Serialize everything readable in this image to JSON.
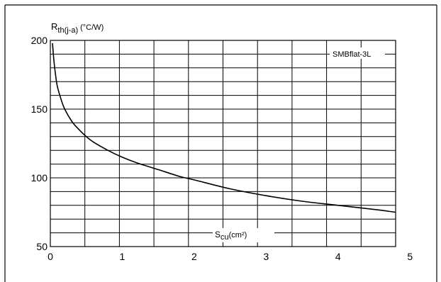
{
  "chart_data": {
    "type": "line",
    "ylabel_main": "R",
    "ylabel_sub": "th(j-a)",
    "ylabel_unit": "(°C/W)",
    "xlabel_main": "S",
    "xlabel_sub": "cu",
    "xlabel_unit": "(cm²)",
    "xlim": [
      0,
      4.8
    ],
    "ylim": [
      50,
      200
    ],
    "x_ticks": [
      0,
      1,
      2,
      3,
      4,
      5
    ],
    "x_tick_labels": [
      "0",
      "1",
      "2",
      "3",
      "4",
      "5"
    ],
    "y_ticks": [
      50,
      100,
      150,
      200
    ],
    "y_tick_labels": [
      "50",
      "100",
      "150",
      "200"
    ],
    "grid": true,
    "series": [
      {
        "name": "SMBflat-3L",
        "x": [
          0.03,
          0.05,
          0.08,
          0.1,
          0.15,
          0.2,
          0.3,
          0.4,
          0.5,
          0.6,
          0.8,
          1.0,
          1.2,
          1.5,
          1.8,
          2.0,
          2.5,
          3.0,
          3.5,
          4.0,
          4.5,
          4.8
        ],
        "values": [
          198,
          185,
          172,
          166,
          157,
          150,
          141,
          135,
          130,
          126,
          120,
          115,
          111,
          106,
          101,
          98.5,
          92,
          87,
          83,
          80,
          77,
          75
        ]
      }
    ]
  }
}
